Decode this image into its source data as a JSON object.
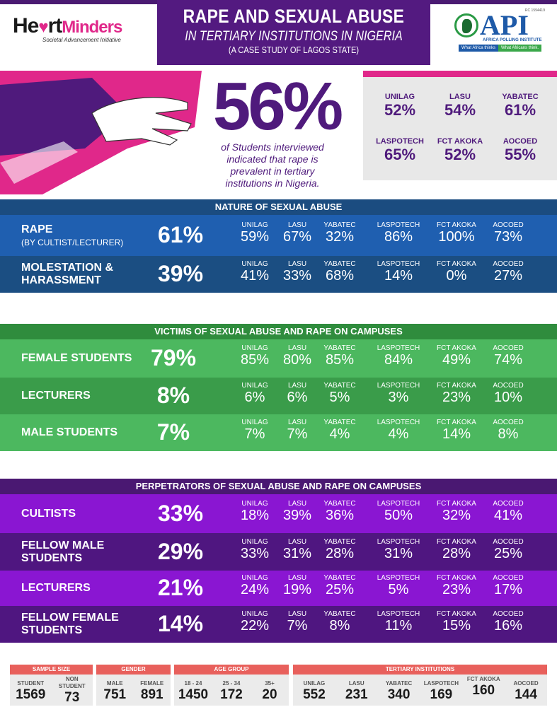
{
  "header": {
    "left_logo": {
      "word_a": "He",
      "word_b": "rt",
      "word_c": "Minders",
      "tagline": "Societal Advancement Initiative"
    },
    "title": "RAPE AND SEXUAL ABUSE",
    "subtitle": "IN TERTIARY INSTITUTIONS IN NIGERIA",
    "subsubtitle": "(A CASE STUDY OF LAGOS STATE)",
    "right_logo": {
      "rc": "RC 1594419",
      "name": "API",
      "full": "AFRICA POLLING INSTITUTE",
      "tag1": "What Africa thinks",
      "tag2": "What Africans think."
    }
  },
  "hero": {
    "headline": "56%",
    "caption": "of Students interviewed indicated that rape is prevalent in tertiary institutions in Nigeria.",
    "by_institution": [
      {
        "name": "UNILAG",
        "value": "52%"
      },
      {
        "name": "LASU",
        "value": "54%"
      },
      {
        "name": "YABATEC",
        "value": "61%"
      },
      {
        "name": "LASPOTECH",
        "value": "65%"
      },
      {
        "name": "FCT AKOKA",
        "value": "52%"
      },
      {
        "name": "AOCOED",
        "value": "55%"
      }
    ]
  },
  "institutions": [
    "UNILAG",
    "LASU",
    "YABATEC",
    "LASPOTECH",
    "FCT AKOKA",
    "AOCOED"
  ],
  "sections": [
    {
      "title": "NATURE OF SEXUAL ABUSE",
      "colors": {
        "header": "#1b4c80",
        "a": "#1f5fb0",
        "b": "#1b4e82"
      },
      "rows": [
        {
          "label": "RAPE",
          "sublabel": "(BY CULTIST/LECTURER)",
          "total": "61%",
          "values": [
            "59%",
            "67%",
            "32%",
            "86%",
            "100%",
            "73%"
          ]
        },
        {
          "label": "MOLESTATION & HARASSMENT",
          "total": "39%",
          "values": [
            "41%",
            "33%",
            "68%",
            "14%",
            "0%",
            "27%"
          ]
        }
      ]
    },
    {
      "title": "VICTIMS OF SEXUAL ABUSE AND RAPE ON CAMPUSES",
      "colors": {
        "header": "#2f8c3d",
        "a": "#4cb85f",
        "b": "#3a9c4a"
      },
      "rows": [
        {
          "label": "FEMALE STUDENTS",
          "total": "79%",
          "values": [
            "85%",
            "80%",
            "85%",
            "84%",
            "49%",
            "74%"
          ]
        },
        {
          "label": "LECTURERS",
          "total": "8%",
          "values": [
            "6%",
            "6%",
            "5%",
            "3%",
            "23%",
            "10%"
          ]
        },
        {
          "label": "MALE STUDENTS",
          "total": "7%",
          "values": [
            "7%",
            "7%",
            "4%",
            "4%",
            "14%",
            "8%"
          ]
        }
      ]
    },
    {
      "title": "PERPETRATORS OF SEXUAL ABUSE AND RAPE ON CAMPUSES",
      "colors": {
        "header": "#4a1872",
        "a": "#8a16d2",
        "b": "#4f1680"
      },
      "rows": [
        {
          "label": "CULTISTS",
          "total": "33%",
          "values": [
            "18%",
            "39%",
            "36%",
            "50%",
            "32%",
            "41%"
          ]
        },
        {
          "label": "FELLOW MALE STUDENTS",
          "total": "29%",
          "values": [
            "33%",
            "31%",
            "28%",
            "31%",
            "28%",
            "25%"
          ]
        },
        {
          "label": "LECTURERS",
          "total": "21%",
          "values": [
            "24%",
            "19%",
            "25%",
            "5%",
            "23%",
            "17%"
          ]
        },
        {
          "label": "FELLOW FEMALE STUDENTS",
          "total": "14%",
          "values": [
            "22%",
            "7%",
            "8%",
            "11%",
            "15%",
            "16%"
          ]
        }
      ]
    }
  ],
  "footer": [
    {
      "title": "SAMPLE SIZE",
      "items": [
        {
          "name": "STUDENT",
          "value": "1569"
        },
        {
          "name": "NON STUDENT",
          "value": "73"
        }
      ]
    },
    {
      "title": "GENDER",
      "items": [
        {
          "name": "MALE",
          "value": "751"
        },
        {
          "name": "FEMALE",
          "value": "891"
        }
      ]
    },
    {
      "title": "AGE GROUP",
      "items": [
        {
          "name": "18 - 24",
          "value": "1450"
        },
        {
          "name": "25 - 34",
          "value": "172"
        },
        {
          "name": "35+",
          "value": "20"
        }
      ]
    },
    {
      "title": "TERTIARY INSTITUTIONS",
      "items": [
        {
          "name": "UNILAG",
          "value": "552"
        },
        {
          "name": "LASU",
          "value": "231"
        },
        {
          "name": "YABATEC",
          "value": "340"
        },
        {
          "name": "LASPOTECH",
          "value": "169"
        },
        {
          "name": "FCT AKOKA",
          "value": "160"
        },
        {
          "name": "AOCOED",
          "value": "144"
        }
      ]
    }
  ]
}
